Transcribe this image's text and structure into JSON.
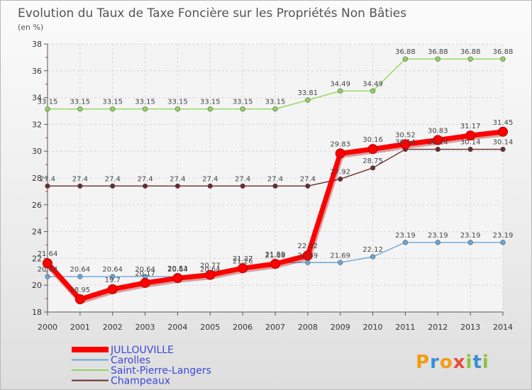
{
  "chart_data": {
    "type": "line",
    "title": "Evolution du Taux de Taxe Foncière sur les Propriétés Non Bâties",
    "subtitle": "(en %)",
    "xlabel": "",
    "ylabel": "",
    "ylim": [
      18,
      38
    ],
    "yticks": [
      "18",
      "20",
      "22",
      "24",
      "26",
      "28",
      "30",
      "32",
      "34",
      "36",
      "38"
    ],
    "categories": [
      "2000",
      "2001",
      "2002",
      "2003",
      "2004",
      "2005",
      "2006",
      "2007",
      "2008",
      "2009",
      "2010",
      "2011",
      "2012",
      "2013",
      "2014"
    ],
    "grid": true,
    "legend_position": "bottom-left",
    "series": [
      {
        "name": "Champeaux",
        "color": "#6b2b2b",
        "values": [
          27.4,
          27.4,
          27.4,
          27.4,
          27.4,
          27.4,
          27.4,
          27.4,
          27.4,
          27.92,
          28.75,
          30.14,
          30.14,
          30.14,
          30.14
        ],
        "labels": [
          "27.4",
          "27.4",
          "27.4",
          "27.4",
          "27.4",
          "27.4",
          "27.4",
          "27.4",
          "27.4",
          "27.92",
          "28.75",
          "30.14",
          "30.14",
          "30.14",
          "30.14"
        ]
      },
      {
        "name": "Saint-Pierre-Langers",
        "color": "#8fd65c",
        "values": [
          33.15,
          33.15,
          33.15,
          33.15,
          33.15,
          33.15,
          33.15,
          33.15,
          33.81,
          34.49,
          34.49,
          36.88,
          36.88,
          36.88,
          36.88
        ],
        "labels": [
          "33.15",
          "33.15",
          "33.15",
          "33.15",
          "33.15",
          "33.15",
          "33.15",
          "33.15",
          "33.81",
          "34.49",
          "34.49",
          "36.88",
          "36.88",
          "36.88",
          "36.88"
        ]
      },
      {
        "name": "Carolles",
        "color": "#6aa6d6",
        "values": [
          20.64,
          20.64,
          20.64,
          20.64,
          20.64,
          20.64,
          21.26,
          21.69,
          21.69,
          21.69,
          22.12,
          23.19,
          23.19,
          23.19,
          23.19
        ],
        "labels": [
          "20.64",
          "20.64",
          "20.64",
          "20.64",
          "20.64",
          "20.64",
          "21.26",
          "21.69",
          "21.69",
          "21.69",
          "22.12",
          "23.19",
          "23.19",
          "23.19",
          "23.19"
        ]
      },
      {
        "name": "JULLOUVILLE",
        "color": "#ff0000",
        "values": [
          21.64,
          18.95,
          19.7,
          20.17,
          20.53,
          20.77,
          21.27,
          21.59,
          22.22,
          29.83,
          30.16,
          30.52,
          30.83,
          31.17,
          31.45
        ],
        "labels": [
          "21.64",
          "18.95",
          "19.7",
          "20.17",
          "20.53",
          "20.77",
          "21.27",
          "21.59",
          "22.22",
          "29.83",
          "30.16",
          "30.52",
          "30.83",
          "31.17",
          "31.45"
        ]
      }
    ],
    "legend_order": [
      "JULLOUVILLE",
      "Carolles",
      "Saint-Pierre-Langers",
      "Champeaux"
    ]
  },
  "logo": {
    "text": "Proxiti"
  }
}
